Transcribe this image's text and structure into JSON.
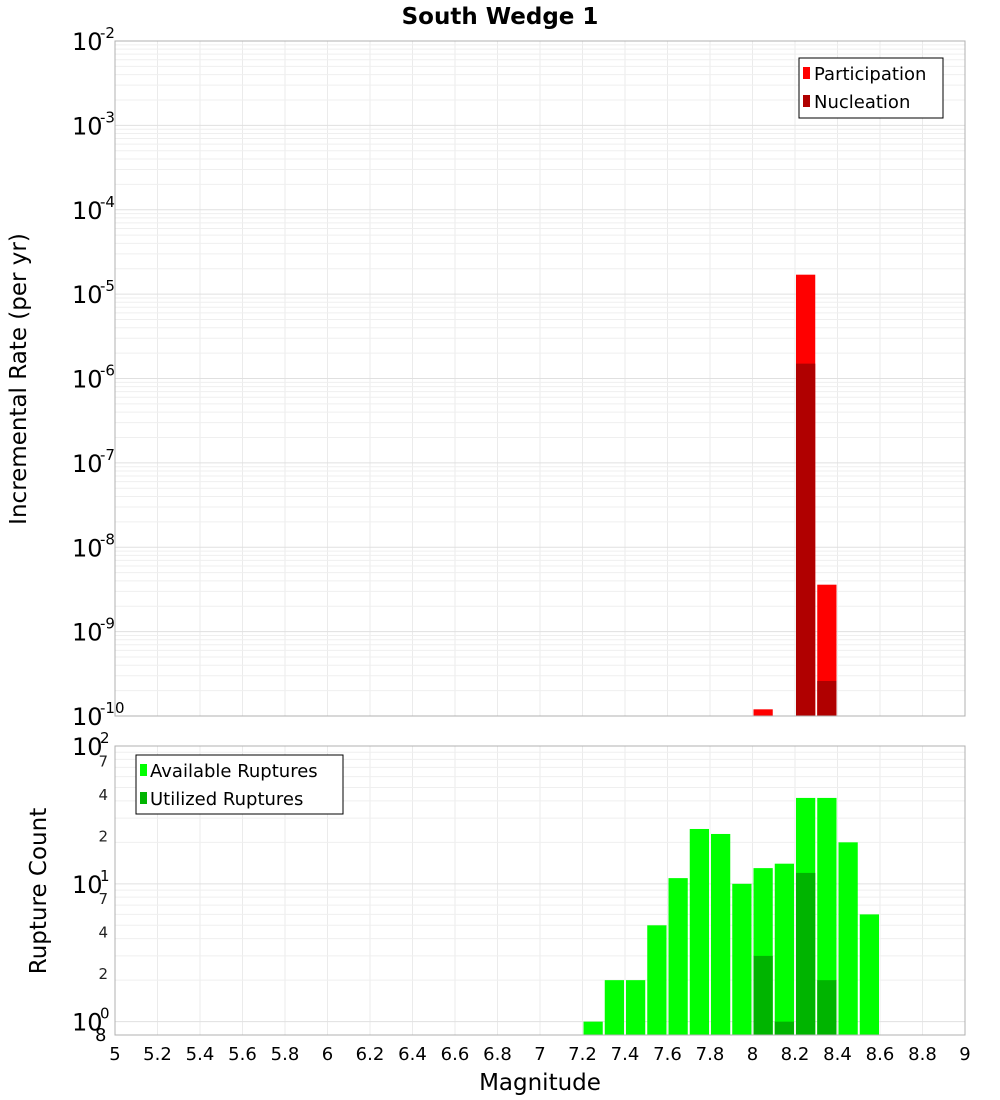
{
  "chart_data": [
    {
      "type": "bar",
      "title": "South Wedge 1",
      "xlabel": "",
      "ylabel": "Incremental Rate (per yr)",
      "yscale": "log",
      "ylim": [
        1e-10,
        0.01
      ],
      "xlim": [
        5,
        9
      ],
      "y_tick_exponents": [
        "-2",
        "-3",
        "-4",
        "-5",
        "-6",
        "-7",
        "-8",
        "-9",
        "-10"
      ],
      "y_tick_base": "10",
      "grid": true,
      "legend_position": "top-right",
      "series": [
        {
          "name": "Participation",
          "color": "#ff0000",
          "points": [
            {
              "x": 8.05,
              "y": 1.2e-10
            },
            {
              "x": 8.25,
              "y": 1.7e-05
            },
            {
              "x": 8.35,
              "y": 3.6e-09
            }
          ]
        },
        {
          "name": "Nucleation",
          "color": "#b00000",
          "points": [
            {
              "x": 8.25,
              "y": 1.5e-06
            },
            {
              "x": 8.35,
              "y": 2.6e-10
            }
          ]
        }
      ]
    },
    {
      "type": "bar",
      "title": "",
      "xlabel": "Magnitude",
      "ylabel": "Rupture Count",
      "yscale": "log",
      "ylim": [
        0.8,
        100
      ],
      "xlim": [
        5,
        9
      ],
      "x_ticks": [
        "5",
        "5.2",
        "5.4",
        "5.6",
        "5.8",
        "6",
        "6.2",
        "6.4",
        "6.6",
        "6.8",
        "7",
        "7.2",
        "7.4",
        "7.6",
        "7.8",
        "8",
        "8.2",
        "8.4",
        "8.6",
        "8.8",
        "9"
      ],
      "y_major_ticks": [
        {
          "base": "10",
          "exp": "2"
        },
        {
          "base": "10",
          "exp": "1"
        },
        {
          "base": "10",
          "exp": "0"
        }
      ],
      "y_minor_ticks": [
        "7",
        "4",
        "2",
        "7",
        "4",
        "2"
      ],
      "y_bottom_label": "8",
      "grid": true,
      "legend_position": "top-left",
      "series": [
        {
          "name": "Available Ruptures",
          "color": "#00ff00",
          "points": [
            {
              "x": 7.25,
              "y": 1
            },
            {
              "x": 7.35,
              "y": 2
            },
            {
              "x": 7.45,
              "y": 2
            },
            {
              "x": 7.55,
              "y": 5
            },
            {
              "x": 7.65,
              "y": 11
            },
            {
              "x": 7.75,
              "y": 25
            },
            {
              "x": 7.85,
              "y": 23
            },
            {
              "x": 7.95,
              "y": 10
            },
            {
              "x": 8.05,
              "y": 13
            },
            {
              "x": 8.15,
              "y": 14
            },
            {
              "x": 8.25,
              "y": 42
            },
            {
              "x": 8.35,
              "y": 42
            },
            {
              "x": 8.45,
              "y": 20
            },
            {
              "x": 8.55,
              "y": 6
            }
          ]
        },
        {
          "name": "Utilized Ruptures",
          "color": "#00b400",
          "points": [
            {
              "x": 8.05,
              "y": 3
            },
            {
              "x": 8.15,
              "y": 1
            },
            {
              "x": 8.25,
              "y": 12
            },
            {
              "x": 8.35,
              "y": 2
            }
          ]
        }
      ]
    }
  ]
}
